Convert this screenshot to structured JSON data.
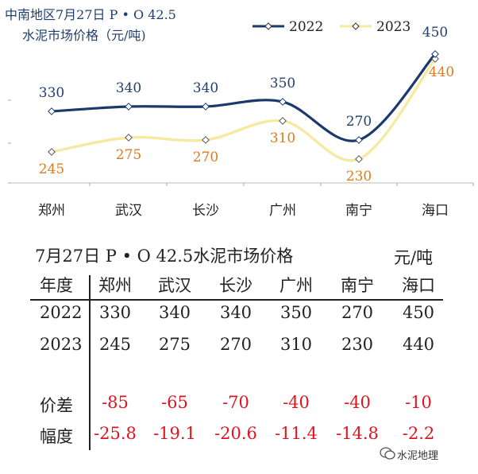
{
  "chart_data": {
    "type": "line",
    "title_line1": "中南地区7月27日  P • O 42.5",
    "title_line2": "水泥市场价格（元/吨)",
    "categories": [
      "郑州",
      "武汉",
      "长沙",
      "广州",
      "南宁",
      "海口"
    ],
    "series": [
      {
        "name": "2022",
        "values": [
          330,
          340,
          340,
          350,
          270,
          450
        ],
        "color": "#1b3a6b"
      },
      {
        "name": "2023",
        "values": [
          245,
          275,
          270,
          310,
          230,
          440
        ],
        "color": "#f6e9a2"
      }
    ],
    "label_colors": {
      "2022": "#1f3f6e",
      "2023": "#e07a1c"
    },
    "ylim": [
      150,
      470
    ]
  },
  "table": {
    "title": "7月27日 P • O 42.5水泥市场价格",
    "unit": "元/吨",
    "header_label": "年度",
    "columns": [
      "郑州",
      "武汉",
      "长沙",
      "广州",
      "南宁",
      "海口"
    ],
    "rows": [
      {
        "label": "2022",
        "values": [
          "330",
          "340",
          "340",
          "350",
          "270",
          "450"
        ]
      },
      {
        "label": "2023",
        "values": [
          "245",
          "275",
          "270",
          "310",
          "230",
          "440"
        ]
      },
      {
        "label": "价差",
        "values": [
          "-85",
          "-65",
          "-70",
          "-40",
          "-40",
          "-10"
        ]
      },
      {
        "label": "幅度",
        "values": [
          "-25.8",
          "-19.1",
          "-20.6",
          "-11.4",
          "-14.8",
          "-2.2"
        ]
      }
    ]
  },
  "watermark": "水泥地理"
}
